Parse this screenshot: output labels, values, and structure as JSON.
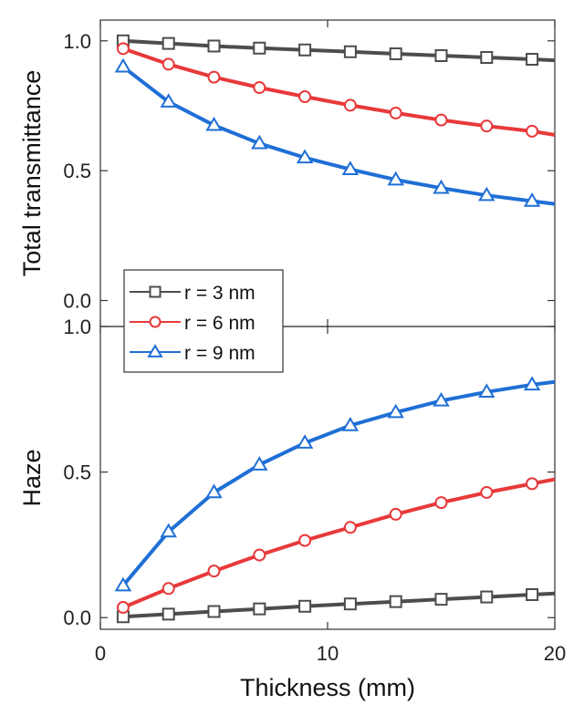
{
  "chart_data": [
    {
      "type": "line",
      "ylabel": "Total transmittance",
      "xlim": [
        0,
        20
      ],
      "ylim": [
        -0.1,
        1.08
      ],
      "yticks": [
        0.0,
        0.5,
        1.0
      ],
      "ytick_labels": [
        "0.0",
        "0.5",
        "1.0"
      ],
      "x": [
        1,
        3,
        5,
        7,
        9,
        11,
        13,
        15,
        17,
        19,
        20
      ],
      "marker_x": [
        1,
        3,
        5,
        7,
        9,
        11,
        13,
        15,
        17,
        19
      ],
      "series": [
        {
          "name": "r = 3 nm",
          "color": "#4d4d4d",
          "marker": "square",
          "values": [
            1.0,
            0.99,
            0.98,
            0.972,
            0.965,
            0.958,
            0.95,
            0.943,
            0.936,
            0.929,
            0.925
          ]
        },
        {
          "name": "r = 6 nm",
          "color": "#e8393a",
          "marker": "circle",
          "values": [
            0.97,
            0.91,
            0.86,
            0.82,
            0.785,
            0.752,
            0.722,
            0.695,
            0.672,
            0.652,
            0.638
          ]
        },
        {
          "name": "r = 9 nm",
          "color": "#1f6fd6",
          "marker": "triangle",
          "values": [
            0.9,
            0.765,
            0.675,
            0.605,
            0.55,
            0.505,
            0.465,
            0.433,
            0.405,
            0.383,
            0.372
          ]
        }
      ],
      "legend_placement": "lower-left"
    },
    {
      "type": "line",
      "xlabel": "Thickness (mm)",
      "ylabel": "Haze",
      "xlim": [
        0,
        20
      ],
      "ylim": [
        -0.04,
        1.0
      ],
      "xticks": [
        0,
        10,
        20
      ],
      "xtick_labels": [
        "0",
        "10",
        "20"
      ],
      "yticks": [
        0.0,
        0.5,
        1.0
      ],
      "ytick_labels": [
        "0.0",
        "0.5",
        "1.0"
      ],
      "x": [
        1,
        3,
        5,
        7,
        9,
        11,
        13,
        15,
        17,
        19,
        20
      ],
      "marker_x": [
        1,
        3,
        5,
        7,
        9,
        11,
        13,
        15,
        17,
        19
      ],
      "series": [
        {
          "name": "r = 3 nm",
          "color": "#4d4d4d",
          "marker": "square",
          "values": [
            0.003,
            0.012,
            0.021,
            0.03,
            0.039,
            0.047,
            0.055,
            0.063,
            0.071,
            0.079,
            0.083
          ]
        },
        {
          "name": "r = 6 nm",
          "color": "#e8393a",
          "marker": "circle",
          "values": [
            0.035,
            0.1,
            0.16,
            0.215,
            0.265,
            0.31,
            0.355,
            0.395,
            0.43,
            0.46,
            0.475
          ]
        },
        {
          "name": "r = 9 nm",
          "color": "#1f6fd6",
          "marker": "triangle",
          "values": [
            0.11,
            0.295,
            0.43,
            0.525,
            0.6,
            0.66,
            0.705,
            0.745,
            0.775,
            0.8,
            0.81
          ]
        }
      ]
    }
  ],
  "legend": [
    "r = 3 nm",
    "r = 6 nm",
    "r = 9 nm"
  ]
}
